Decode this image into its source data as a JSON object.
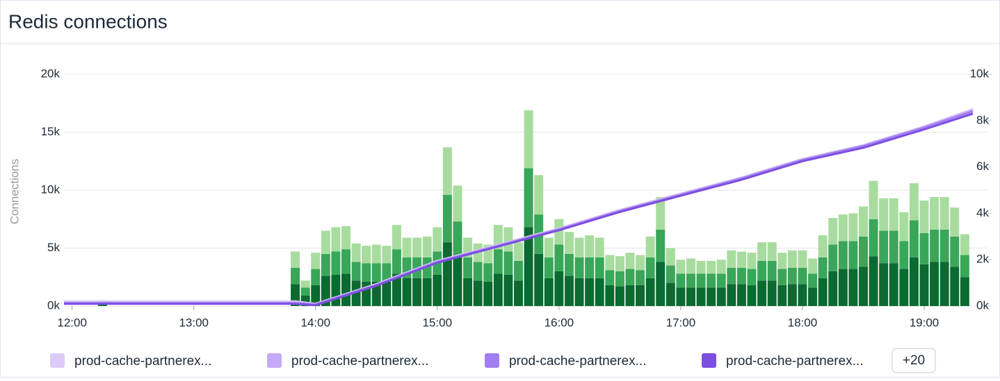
{
  "chart_data": [
    {
      "type": "bar",
      "title": "Redis connections",
      "ylabel": "Connections",
      "xlim": [
        "11:56",
        "19:24"
      ],
      "xticks": [
        "12:00",
        "13:00",
        "14:00",
        "15:00",
        "16:00",
        "17:00",
        "18:00",
        "19:00"
      ],
      "ylim": [
        0,
        20000
      ],
      "yticks": [
        {
          "value": 0,
          "label": "0k"
        },
        {
          "value": 5000,
          "label": "5k"
        },
        {
          "value": 10000,
          "label": "10k"
        },
        {
          "value": 15000,
          "label": "15k"
        },
        {
          "value": 20000,
          "label": "20k"
        }
      ],
      "grid": true,
      "x": [
        "12:15",
        "13:50",
        "13:55",
        "14:00",
        "14:05",
        "14:10",
        "14:15",
        "14:20",
        "14:25",
        "14:30",
        "14:35",
        "14:40",
        "14:45",
        "14:50",
        "14:55",
        "15:00",
        "15:05",
        "15:10",
        "15:15",
        "15:20",
        "15:25",
        "15:30",
        "15:35",
        "15:40",
        "15:45",
        "15:50",
        "15:55",
        "16:00",
        "16:05",
        "16:10",
        "16:15",
        "16:20",
        "16:25",
        "16:30",
        "16:35",
        "16:40",
        "16:45",
        "16:50",
        "16:55",
        "17:00",
        "17:05",
        "17:10",
        "17:15",
        "17:20",
        "17:25",
        "17:30",
        "17:35",
        "17:40",
        "17:45",
        "17:50",
        "17:55",
        "18:00",
        "18:05",
        "18:10",
        "18:15",
        "18:20",
        "18:25",
        "18:30",
        "18:35",
        "18:40",
        "18:45",
        "18:50",
        "18:55",
        "19:00",
        "19:05",
        "19:10",
        "19:15",
        "19:20"
      ],
      "series": [
        {
          "color": "#0b6a30",
          "values": [
            200,
            1900,
            900,
            1800,
            2600,
            2700,
            2800,
            2200,
            2100,
            2100,
            2100,
            2800,
            2400,
            2400,
            2400,
            2700,
            5500,
            4200,
            2400,
            2200,
            2100,
            2800,
            2700,
            2200,
            6800,
            4500,
            2400,
            3000,
            2600,
            2400,
            2400,
            2400,
            1800,
            1700,
            1800,
            1800,
            2400,
            3800,
            2000,
            1600,
            1600,
            1600,
            1600,
            1600,
            1900,
            1900,
            1800,
            2200,
            2200,
            1800,
            1900,
            1900,
            1600,
            2400,
            3000,
            3200,
            3200,
            3400,
            4300,
            3700,
            3700,
            3200,
            4200,
            3600,
            3800,
            3800,
            3400,
            2500
          ]
        },
        {
          "color": "#3aa65a",
          "values": [
            200,
            1400,
            700,
            1400,
            1900,
            2000,
            2100,
            1600,
            1600,
            1600,
            1600,
            2100,
            1800,
            1800,
            1800,
            2000,
            4100,
            3100,
            1800,
            1600,
            1600,
            2100,
            2000,
            1700,
            5100,
            3400,
            1800,
            2300,
            1900,
            1800,
            1800,
            1800,
            1300,
            1300,
            1400,
            1300,
            1800,
            2800,
            1500,
            1200,
            1200,
            1200,
            1200,
            1200,
            1400,
            1400,
            1400,
            1700,
            1700,
            1400,
            1400,
            1400,
            1200,
            1800,
            2300,
            2400,
            2400,
            2600,
            3200,
            2800,
            2800,
            2400,
            3200,
            2700,
            2800,
            2800,
            2600,
            1900
          ]
        },
        {
          "color": "#a8dc9f",
          "values": [
            100,
            1400,
            600,
            1400,
            2000,
            2100,
            2000,
            1600,
            1500,
            1600,
            1500,
            2100,
            1700,
            1700,
            1800,
            2100,
            4100,
            3100,
            1700,
            1600,
            1600,
            2100,
            2100,
            1600,
            5000,
            3400,
            1700,
            2200,
            1900,
            1700,
            1900,
            1700,
            1300,
            1300,
            1400,
            1300,
            1800,
            2800,
            1500,
            1200,
            1300,
            1100,
            1100,
            1200,
            1500,
            1400,
            1400,
            1600,
            1600,
            1400,
            1500,
            1500,
            1300,
            1900,
            2300,
            2300,
            2400,
            2600,
            3300,
            2800,
            2800,
            2500,
            3200,
            2800,
            2800,
            2800,
            2500,
            1800
          ]
        }
      ]
    },
    {
      "type": "line",
      "y2lim": [
        0,
        10000
      ],
      "y2ticks": [
        {
          "value": 0,
          "label": "0k"
        },
        {
          "value": 2000,
          "label": "2k"
        },
        {
          "value": 4000,
          "label": "4k"
        },
        {
          "value": 6000,
          "label": "6k"
        },
        {
          "value": 8000,
          "label": "8k"
        },
        {
          "value": 10000,
          "label": "10k"
        }
      ],
      "x": [
        "11:56",
        "12:30",
        "13:00",
        "13:30",
        "13:50",
        "14:00",
        "14:30",
        "15:00",
        "15:30",
        "16:00",
        "16:30",
        "17:00",
        "17:30",
        "18:00",
        "18:30",
        "19:00",
        "19:24"
      ],
      "legend_more": "+20",
      "series": [
        {
          "name": "prod-cache-partnerex...",
          "color": "#dccbf8",
          "axis": "y2",
          "values": [
            200,
            200,
            200,
            200,
            200,
            100,
            950,
            1950,
            2650,
            3350,
            4150,
            4850,
            5550,
            6350,
            6950,
            7750,
            8500
          ]
        },
        {
          "name": "prod-cache-partnerex...",
          "color": "#c4a9f6",
          "axis": "y2",
          "values": [
            150,
            150,
            150,
            150,
            150,
            80,
            920,
            1920,
            2620,
            3320,
            4120,
            4820,
            5520,
            6320,
            6920,
            7720,
            8450
          ]
        },
        {
          "name": "prod-cache-partnerex...",
          "color": "#a27ff0",
          "axis": "y2",
          "values": [
            130,
            130,
            130,
            130,
            130,
            60,
            900,
            1900,
            2600,
            3300,
            4100,
            4800,
            5500,
            6300,
            6900,
            7700,
            8400
          ]
        },
        {
          "name": "prod-cache-partnerex...",
          "color": "#7c4fe0",
          "axis": "y2",
          "values": [
            100,
            100,
            100,
            100,
            100,
            40,
            880,
            1870,
            2570,
            3270,
            4060,
            4760,
            5450,
            6250,
            6830,
            7620,
            8300
          ]
        }
      ]
    }
  ]
}
